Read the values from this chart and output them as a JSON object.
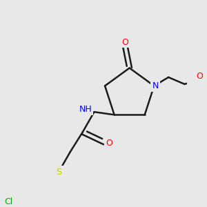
{
  "bg_color": "#e8e8e8",
  "bond_color": "#1a1a1a",
  "atom_colors": {
    "O": "#ff0000",
    "N": "#0000ff",
    "S": "#cccc00",
    "Cl": "#00aa00",
    "H": "#999999"
  },
  "figsize": [
    3.0,
    3.0
  ],
  "dpi": 100
}
